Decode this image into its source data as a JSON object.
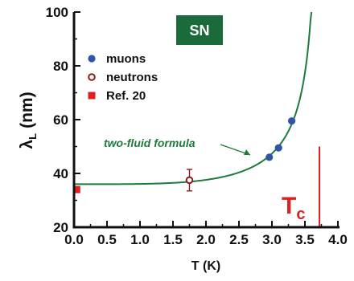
{
  "chart_data": {
    "type": "scatter",
    "xlabel": "T (K)",
    "ylabel_symbol": "λ",
    "ylabel_subscript": "L",
    "ylabel_unit": "(nm)",
    "xlim": [
      0.0,
      4.0
    ],
    "ylim": [
      20,
      100
    ],
    "x_ticks": [
      "0.0",
      "0.5",
      "1.0",
      "1.5",
      "2.0",
      "2.5",
      "3.0",
      "3.5",
      "4.0"
    ],
    "y_ticks": [
      "20",
      "40",
      "60",
      "80",
      "100"
    ],
    "grid": false,
    "legend_position": "top-left",
    "badge": {
      "text": "SN",
      "color": "#1b6b3a",
      "text_color": "#ffffff"
    },
    "series": [
      {
        "name": "muons",
        "marker": "circle-filled",
        "color": "#2f55a4",
        "points": [
          {
            "x": 2.96,
            "y": 46.0
          },
          {
            "x": 3.1,
            "y": 49.5
          },
          {
            "x": 3.3,
            "y": 59.5
          }
        ]
      },
      {
        "name": "neutrons",
        "marker": "circle-open",
        "color": "#8b1a1a",
        "points": [
          {
            "x": 1.75,
            "y": 37.5,
            "yerr": 4.0
          }
        ]
      },
      {
        "name": "Ref. 20",
        "marker": "square-filled",
        "color": "#e02020",
        "points": [
          {
            "x": 0.04,
            "y": 34.0
          }
        ]
      }
    ],
    "curve": {
      "label": "two-fluid formula",
      "color": "#1e7a3c",
      "lambda0": 36,
      "tc": 3.72,
      "x_max": 3.63
    },
    "tc_marker": {
      "label": "T",
      "subscript": "c",
      "x": 3.72,
      "y_from": 20,
      "y_to": 50,
      "color": "#e02020"
    }
  }
}
